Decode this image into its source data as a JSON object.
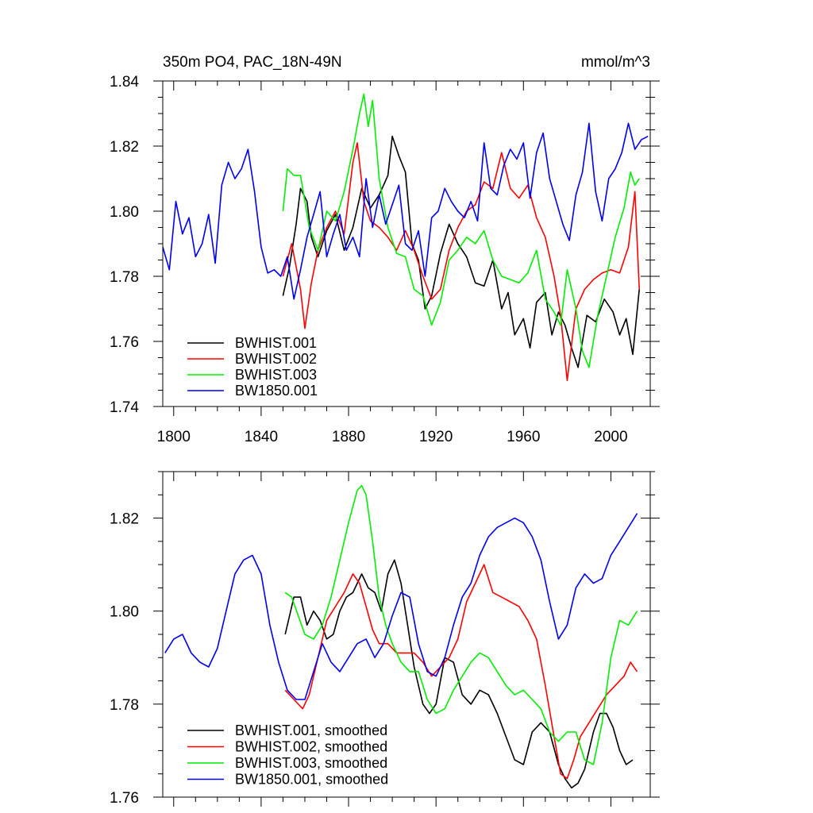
{
  "chart_data": [
    {
      "type": "line",
      "title": "350m PO4, PAC_18N-49N",
      "units": "mmol/m^3",
      "xlim": [
        1795,
        2018
      ],
      "ylim": [
        1.74,
        1.84
      ],
      "xticks": [
        1800,
        1840,
        1880,
        1920,
        1960,
        2000
      ],
      "xtick_labels": [
        "1800",
        "1840",
        "1880",
        "1920",
        "1960",
        "2000"
      ],
      "yticks": [
        1.74,
        1.76,
        1.78,
        1.8,
        1.82,
        1.84
      ],
      "ytick_labels": [
        "1.74",
        "1.76",
        "1.78",
        "1.80",
        "1.82",
        "1.84"
      ],
      "legend_position": "bottom-left",
      "series": [
        {
          "name": "BWHIST.001",
          "color": "#000000",
          "x": [
            1850,
            1853,
            1856,
            1858,
            1861,
            1863,
            1866,
            1870,
            1874,
            1878,
            1882,
            1886,
            1890,
            1894,
            1898,
            1900,
            1903,
            1906,
            1909,
            1912,
            1915,
            1918,
            1922,
            1926,
            1930,
            1934,
            1938,
            1942,
            1946,
            1950,
            1953,
            1956,
            1960,
            1963,
            1966,
            1970,
            1973,
            1976,
            1979,
            1982,
            1985,
            1989,
            1993,
            1997,
            2001,
            2004,
            2007,
            2010,
            2013
          ],
          "y": [
            1.774,
            1.783,
            1.796,
            1.807,
            1.803,
            1.792,
            1.786,
            1.794,
            1.799,
            1.788,
            1.795,
            1.807,
            1.801,
            1.805,
            1.811,
            1.823,
            1.817,
            1.812,
            1.79,
            1.785,
            1.77,
            1.774,
            1.787,
            1.796,
            1.79,
            1.786,
            1.778,
            1.777,
            1.785,
            1.77,
            1.775,
            1.762,
            1.767,
            1.758,
            1.772,
            1.775,
            1.762,
            1.769,
            1.765,
            1.758,
            1.752,
            1.768,
            1.766,
            1.773,
            1.769,
            1.762,
            1.767,
            1.756,
            1.776
          ]
        },
        {
          "name": "BWHIST.002",
          "color": "#ff0000",
          "x": [
            1850,
            1854,
            1858,
            1860,
            1863,
            1866,
            1870,
            1874,
            1878,
            1882,
            1884,
            1887,
            1890,
            1894,
            1898,
            1902,
            1906,
            1910,
            1914,
            1918,
            1922,
            1926,
            1930,
            1934,
            1938,
            1942,
            1946,
            1950,
            1954,
            1958,
            1962,
            1966,
            1970,
            1974,
            1977,
            1980,
            1984,
            1988,
            1992,
            1996,
            2000,
            2004,
            2008,
            2011,
            2013
          ],
          "y": [
            1.78,
            1.79,
            1.776,
            1.764,
            1.778,
            1.788,
            1.795,
            1.8,
            1.793,
            1.815,
            1.821,
            1.803,
            1.797,
            1.795,
            1.792,
            1.788,
            1.794,
            1.788,
            1.78,
            1.773,
            1.776,
            1.788,
            1.795,
            1.8,
            1.802,
            1.809,
            1.807,
            1.818,
            1.807,
            1.804,
            1.808,
            1.798,
            1.792,
            1.78,
            1.768,
            1.748,
            1.77,
            1.776,
            1.779,
            1.781,
            1.782,
            1.781,
            1.789,
            1.806,
            1.776
          ]
        },
        {
          "name": "BWHIST.003",
          "color": "#00ee00",
          "x": [
            1850,
            1852,
            1855,
            1858,
            1862,
            1866,
            1870,
            1874,
            1878,
            1882,
            1885,
            1887,
            1889,
            1891,
            1894,
            1898,
            1902,
            1906,
            1910,
            1914,
            1918,
            1922,
            1926,
            1930,
            1934,
            1938,
            1942,
            1946,
            1950,
            1954,
            1958,
            1962,
            1966,
            1970,
            1974,
            1977,
            1980,
            1984,
            1987,
            1990,
            1994,
            1998,
            2002,
            2006,
            2009,
            2011,
            2013
          ],
          "y": [
            1.8,
            1.813,
            1.811,
            1.811,
            1.795,
            1.788,
            1.8,
            1.797,
            1.806,
            1.819,
            1.83,
            1.836,
            1.826,
            1.834,
            1.81,
            1.795,
            1.787,
            1.786,
            1.776,
            1.774,
            1.765,
            1.772,
            1.785,
            1.788,
            1.792,
            1.79,
            1.794,
            1.785,
            1.78,
            1.779,
            1.778,
            1.781,
            1.788,
            1.773,
            1.769,
            1.765,
            1.782,
            1.77,
            1.757,
            1.752,
            1.768,
            1.78,
            1.792,
            1.801,
            1.812,
            1.808,
            1.81
          ]
        },
        {
          "name": "BW1850.001",
          "color": "#0000ee",
          "x": [
            1795,
            1798,
            1801,
            1804,
            1807,
            1810,
            1813,
            1816,
            1819,
            1822,
            1825,
            1828,
            1831,
            1834,
            1837,
            1840,
            1843,
            1846,
            1849,
            1852,
            1855,
            1858,
            1861,
            1864,
            1867,
            1870,
            1873,
            1876,
            1879,
            1882,
            1885,
            1888,
            1891,
            1894,
            1897,
            1900,
            1903,
            1906,
            1909,
            1912,
            1915,
            1918,
            1921,
            1924,
            1927,
            1930,
            1933,
            1936,
            1939,
            1942,
            1945,
            1948,
            1951,
            1954,
            1957,
            1960,
            1963,
            1966,
            1969,
            1972,
            1975,
            1978,
            1981,
            1984,
            1987,
            1990,
            1993,
            1996,
            1999,
            2002,
            2005,
            2008,
            2011,
            2014,
            2017
          ],
          "y": [
            1.789,
            1.782,
            1.803,
            1.793,
            1.798,
            1.786,
            1.79,
            1.799,
            1.784,
            1.808,
            1.815,
            1.81,
            1.813,
            1.819,
            1.806,
            1.789,
            1.781,
            1.782,
            1.78,
            1.786,
            1.773,
            1.782,
            1.792,
            1.799,
            1.806,
            1.786,
            1.793,
            1.799,
            1.788,
            1.792,
            1.786,
            1.81,
            1.795,
            1.805,
            1.796,
            1.802,
            1.808,
            1.79,
            1.788,
            1.794,
            1.78,
            1.798,
            1.8,
            1.807,
            1.803,
            1.8,
            1.798,
            1.803,
            1.797,
            1.821,
            1.807,
            1.805,
            1.814,
            1.819,
            1.816,
            1.821,
            1.804,
            1.818,
            1.824,
            1.81,
            1.803,
            1.796,
            1.791,
            1.805,
            1.812,
            1.827,
            1.806,
            1.797,
            1.81,
            1.813,
            1.818,
            1.827,
            1.819,
            1.822,
            1.823
          ]
        }
      ]
    },
    {
      "type": "line",
      "xlim": [
        1795,
        2018
      ],
      "ylim": [
        1.76,
        1.83
      ],
      "xticks": [
        1800,
        1840,
        1880,
        1920,
        1960,
        2000
      ],
      "yticks": [
        1.76,
        1.78,
        1.8,
        1.82
      ],
      "ytick_labels": [
        "1.76",
        "1.78",
        "1.80",
        "1.82"
      ],
      "legend_position": "bottom-left",
      "series": [
        {
          "name": "BWHIST.001, smoothed",
          "color": "#000000",
          "x": [
            1851,
            1855,
            1858,
            1861,
            1864,
            1867,
            1870,
            1873,
            1876,
            1879,
            1882,
            1886,
            1889,
            1892,
            1895,
            1898,
            1901,
            1904,
            1907,
            1910,
            1914,
            1917,
            1920,
            1924,
            1928,
            1932,
            1936,
            1940,
            1944,
            1948,
            1952,
            1956,
            1960,
            1964,
            1968,
            1972,
            1976,
            1979,
            1982,
            1985,
            1988,
            1992,
            1995,
            1998,
            2001,
            2004,
            2007,
            2010
          ],
          "y": [
            1.795,
            1.803,
            1.803,
            1.797,
            1.8,
            1.798,
            1.794,
            1.795,
            1.8,
            1.803,
            1.804,
            1.808,
            1.805,
            1.804,
            1.8,
            1.808,
            1.811,
            1.806,
            1.797,
            1.788,
            1.78,
            1.778,
            1.78,
            1.79,
            1.789,
            1.782,
            1.78,
            1.783,
            1.782,
            1.778,
            1.773,
            1.768,
            1.767,
            1.774,
            1.776,
            1.774,
            1.767,
            1.764,
            1.762,
            1.763,
            1.766,
            1.774,
            1.778,
            1.778,
            1.775,
            1.77,
            1.767,
            1.768
          ]
        },
        {
          "name": "BWHIST.002, smoothed",
          "color": "#ff0000",
          "x": [
            1851,
            1855,
            1859,
            1862,
            1866,
            1870,
            1874,
            1878,
            1882,
            1885,
            1888,
            1891,
            1894,
            1898,
            1902,
            1906,
            1910,
            1914,
            1918,
            1922,
            1926,
            1930,
            1934,
            1938,
            1942,
            1946,
            1950,
            1954,
            1958,
            1962,
            1966,
            1970,
            1974,
            1977,
            1980,
            1983,
            1986,
            1990,
            1994,
            1998,
            2002,
            2006,
            2009,
            2012
          ],
          "y": [
            1.783,
            1.781,
            1.779,
            1.782,
            1.79,
            1.798,
            1.801,
            1.804,
            1.808,
            1.806,
            1.801,
            1.796,
            1.793,
            1.793,
            1.791,
            1.791,
            1.791,
            1.789,
            1.786,
            1.788,
            1.79,
            1.794,
            1.802,
            1.806,
            1.81,
            1.804,
            1.803,
            1.802,
            1.801,
            1.798,
            1.794,
            1.784,
            1.773,
            1.765,
            1.764,
            1.768,
            1.773,
            1.776,
            1.779,
            1.782,
            1.784,
            1.786,
            1.789,
            1.787
          ]
        },
        {
          "name": "BWHIST.003, smoothed",
          "color": "#00ee00",
          "x": [
            1851,
            1854,
            1857,
            1860,
            1864,
            1868,
            1872,
            1876,
            1880,
            1884,
            1886,
            1888,
            1891,
            1894,
            1897,
            1900,
            1904,
            1908,
            1912,
            1916,
            1920,
            1924,
            1928,
            1932,
            1936,
            1940,
            1944,
            1948,
            1952,
            1956,
            1960,
            1964,
            1968,
            1972,
            1976,
            1980,
            1984,
            1988,
            1992,
            1996,
            2000,
            2004,
            2008,
            2012
          ],
          "y": [
            1.804,
            1.803,
            1.799,
            1.795,
            1.794,
            1.797,
            1.803,
            1.811,
            1.819,
            1.826,
            1.827,
            1.825,
            1.815,
            1.803,
            1.797,
            1.793,
            1.789,
            1.787,
            1.787,
            1.781,
            1.778,
            1.779,
            1.783,
            1.786,
            1.789,
            1.791,
            1.79,
            1.787,
            1.784,
            1.782,
            1.783,
            1.781,
            1.779,
            1.774,
            1.772,
            1.774,
            1.774,
            1.768,
            1.767,
            1.776,
            1.79,
            1.798,
            1.797,
            1.8
          ]
        },
        {
          "name": "BW1850.001, smoothed",
          "color": "#0000ee",
          "x": [
            1796,
            1800,
            1804,
            1808,
            1812,
            1816,
            1820,
            1824,
            1828,
            1832,
            1836,
            1840,
            1844,
            1848,
            1852,
            1856,
            1860,
            1864,
            1868,
            1872,
            1876,
            1880,
            1884,
            1888,
            1892,
            1896,
            1900,
            1904,
            1908,
            1912,
            1916,
            1920,
            1924,
            1928,
            1932,
            1936,
            1940,
            1944,
            1948,
            1952,
            1956,
            1960,
            1964,
            1968,
            1972,
            1976,
            1980,
            1984,
            1988,
            1992,
            1996,
            2000,
            2004,
            2008,
            2012
          ],
          "y": [
            1.791,
            1.794,
            1.795,
            1.791,
            1.789,
            1.788,
            1.792,
            1.8,
            1.808,
            1.811,
            1.812,
            1.808,
            1.797,
            1.789,
            1.783,
            1.781,
            1.781,
            1.787,
            1.793,
            1.789,
            1.787,
            1.79,
            1.793,
            1.794,
            1.79,
            1.793,
            1.799,
            1.804,
            1.803,
            1.793,
            1.787,
            1.786,
            1.79,
            1.797,
            1.803,
            1.806,
            1.812,
            1.816,
            1.818,
            1.819,
            1.82,
            1.819,
            1.816,
            1.811,
            1.802,
            1.794,
            1.797,
            1.805,
            1.808,
            1.806,
            1.807,
            1.812,
            1.815,
            1.818,
            1.821
          ]
        }
      ]
    }
  ]
}
